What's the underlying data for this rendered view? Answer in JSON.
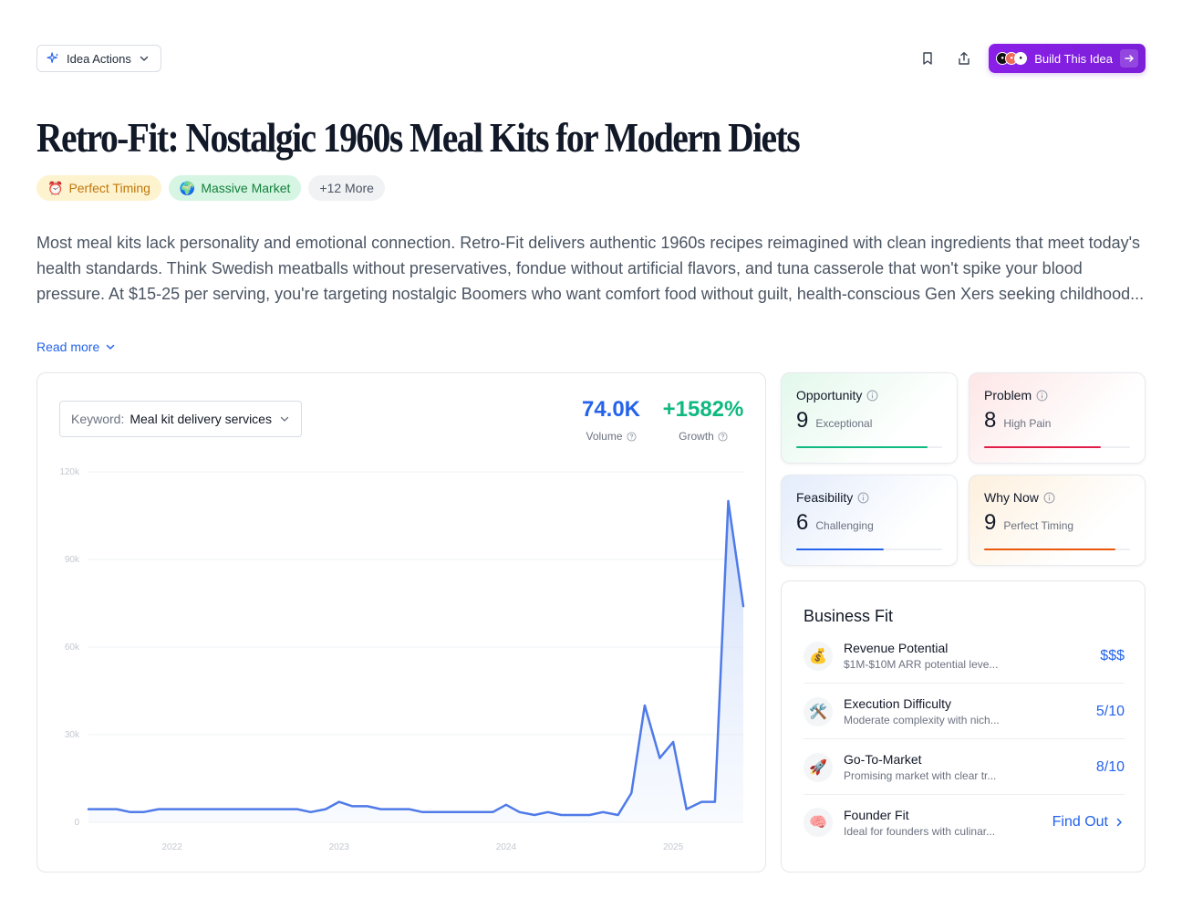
{
  "toolbar": {
    "idea_actions_label": "Idea Actions",
    "build_label": "Build This Idea"
  },
  "page": {
    "title": "Retro-Fit: Nostalgic 1960s Meal Kits for Modern Diets",
    "tags": [
      {
        "emoji": "⏰",
        "label": "Perfect Timing"
      },
      {
        "emoji": "🌍",
        "label": "Massive Market"
      }
    ],
    "more_tags_label": "+12 More",
    "description": "Most meal kits lack personality and emotional connection. Retro-Fit delivers authentic 1960s recipes reimagined with clean ingredients that meet today's health standards. Think Swedish meatballs without preservatives, fondue without artificial flavors, and tuna casserole that won't spike your blood pressure. At $15-25 per serving, you're targeting nostalgic Boomers who want comfort food without guilt, health-conscious Gen Xers seeking childhood...",
    "read_more_label": "Read more"
  },
  "trend": {
    "keyword_label": "Keyword:",
    "keyword_value": "Meal kit delivery services",
    "volume_value": "74.0K",
    "volume_label": "Volume",
    "growth_value": "+1582%",
    "growth_label": "Growth"
  },
  "chart_data": {
    "type": "area",
    "title": "",
    "xlabel": "",
    "ylabel": "",
    "ylim": [
      0,
      120000
    ],
    "y_ticks": [
      "0",
      "30k",
      "60k",
      "90k",
      "120k"
    ],
    "y_tick_values": [
      0,
      30000,
      60000,
      90000,
      120000
    ],
    "x_tick_labels": [
      "2022",
      "2023",
      "2024",
      "2025"
    ],
    "x_tick_values": [
      2022,
      2023,
      2024,
      2025
    ],
    "xlim": [
      2021.5,
      2025.42
    ],
    "grid": true,
    "x": [
      2021.5,
      2021.58,
      2021.67,
      2021.75,
      2021.83,
      2021.92,
      2022.0,
      2022.08,
      2022.17,
      2022.25,
      2022.33,
      2022.42,
      2022.5,
      2022.58,
      2022.67,
      2022.75,
      2022.83,
      2022.92,
      2023.0,
      2023.08,
      2023.17,
      2023.25,
      2023.33,
      2023.42,
      2023.5,
      2023.58,
      2023.67,
      2023.75,
      2023.83,
      2023.92,
      2024.0,
      2024.08,
      2024.17,
      2024.25,
      2024.33,
      2024.42,
      2024.5,
      2024.58,
      2024.67,
      2024.75,
      2024.83,
      2024.92,
      2025.0,
      2025.08,
      2025.17,
      2025.25,
      2025.33,
      2025.42
    ],
    "values": [
      4500,
      4500,
      4500,
      3500,
      3500,
      4500,
      4500,
      4500,
      4500,
      4500,
      4500,
      4500,
      4500,
      4500,
      4500,
      4500,
      3500,
      4500,
      7000,
      5500,
      5500,
      4500,
      4500,
      4500,
      3500,
      3500,
      3500,
      3500,
      3500,
      3500,
      6000,
      3500,
      2500,
      3500,
      2500,
      2500,
      2500,
      3500,
      2500,
      10000,
      40000,
      22000,
      27500,
      4500,
      7000,
      7000,
      110000,
      74000
    ]
  },
  "scores": [
    {
      "name": "Opportunity",
      "value": "9",
      "sub": "Exceptional",
      "fill": 0.9,
      "color": "#10b981"
    },
    {
      "name": "Problem",
      "value": "8",
      "sub": "High Pain",
      "fill": 0.8,
      "color": "#e11d48"
    },
    {
      "name": "Feasibility",
      "value": "6",
      "sub": "Challenging",
      "fill": 0.6,
      "color": "#2563eb"
    },
    {
      "name": "Why Now",
      "value": "9",
      "sub": "Perfect Timing",
      "fill": 0.9,
      "color": "#ea580c"
    }
  ],
  "business_fit": {
    "title": "Business Fit",
    "rows": [
      {
        "emoji": "💰",
        "name": "Revenue Potential",
        "desc": "$1M-$10M ARR potential leve...",
        "value": "$$$"
      },
      {
        "emoji": "🛠️",
        "name": "Execution Difficulty",
        "desc": "Moderate complexity with nich...",
        "value": "5/10"
      },
      {
        "emoji": "🚀",
        "name": "Go-To-Market",
        "desc": "Promising market with clear tr...",
        "value": "8/10"
      },
      {
        "emoji": "🧠",
        "name": "Founder Fit",
        "desc": "Ideal for founders with culinar...",
        "value": "Find Out"
      }
    ]
  },
  "colors": {
    "accent": "#2563eb",
    "brand_purple": "#8a1fe8",
    "growth": "#10b981",
    "line": "#4f7ae8"
  }
}
